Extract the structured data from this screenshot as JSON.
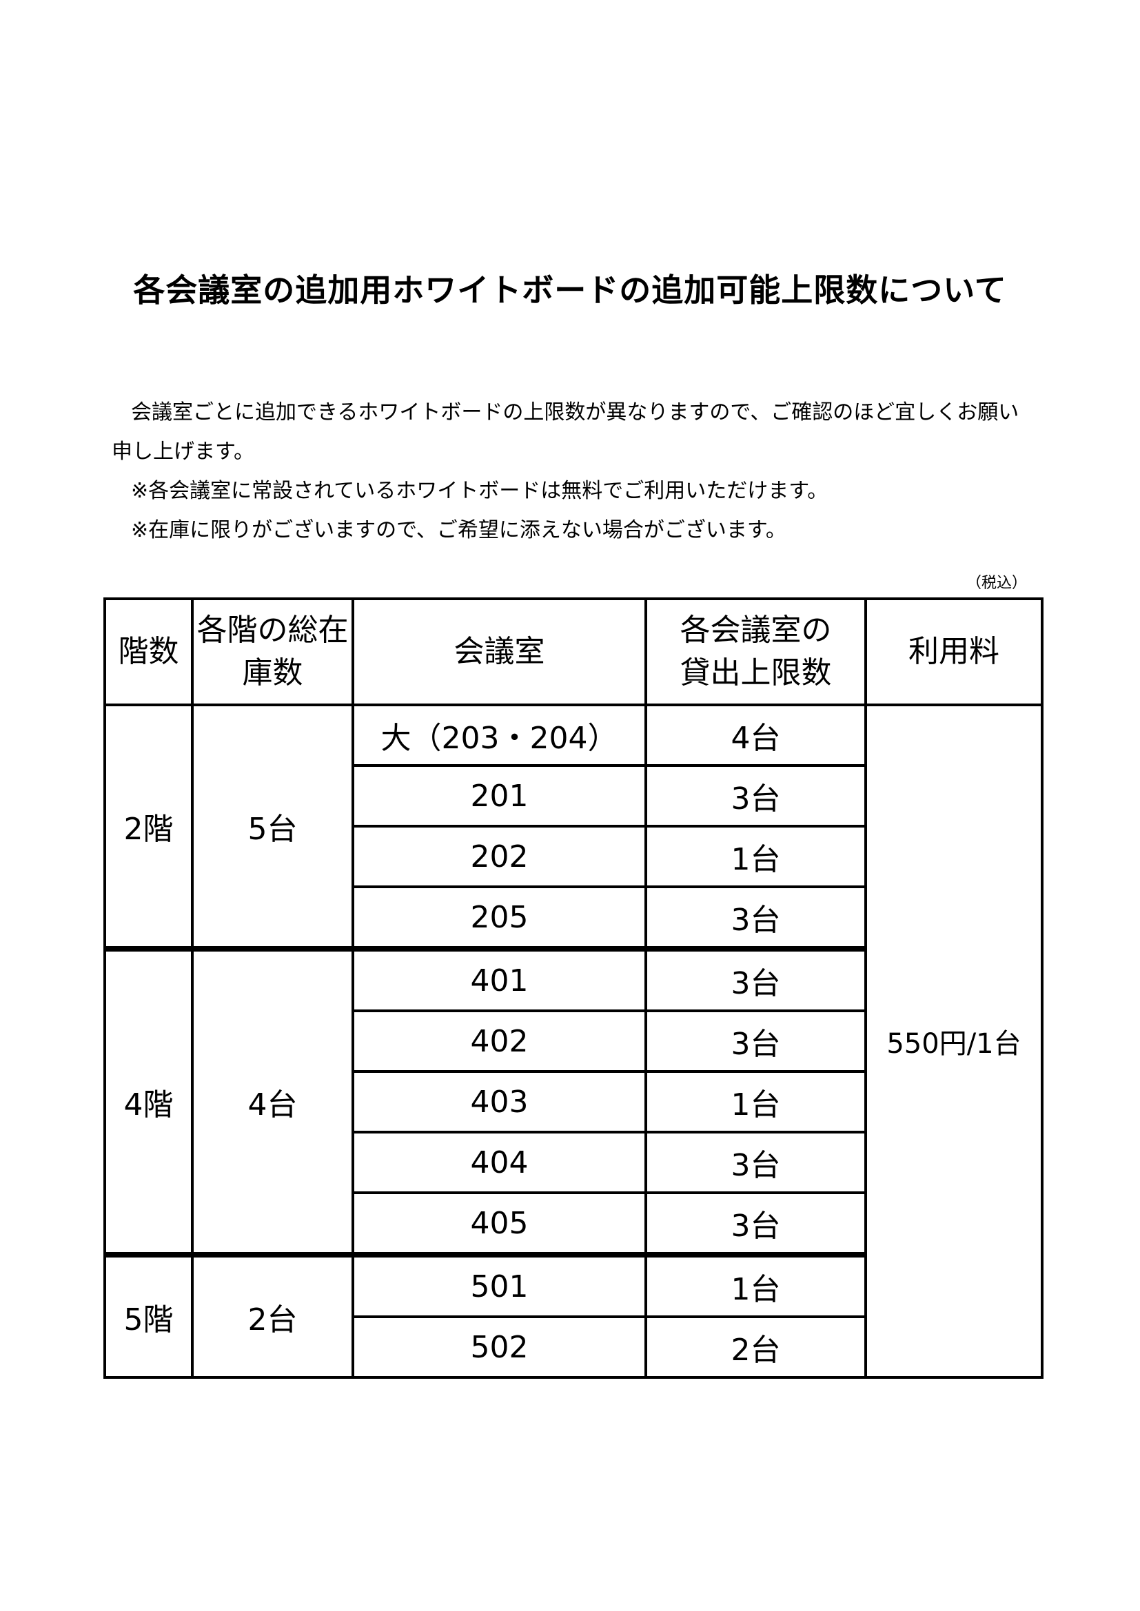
{
  "title": "各会議室の追加用ホワイトボードの追加可能上限数について",
  "intro": [
    "会議室ごとに追加できるホワイトボードの上限数が異なりますので、ご確認のほど宜しくお願い申し上げます。",
    "※各会議室に常設されているホワイトボードは無料でご利用いただけます。",
    "※在庫に限りがございますので、ご希望に添えない場合がございます。"
  ],
  "tax_note": "（税込）",
  "table": {
    "headers": [
      "階数",
      "各階の総在庫数",
      "会議室",
      "各会議室の貸出上限数",
      "利用料"
    ],
    "fee": "550円/1台",
    "floors": [
      {
        "floor": "2階",
        "total": "5台",
        "rooms": [
          {
            "room": "大（203・204）",
            "limit": "4台"
          },
          {
            "room": "201",
            "limit": "3台"
          },
          {
            "room": "202",
            "limit": "1台"
          },
          {
            "room": "205",
            "limit": "3台"
          }
        ]
      },
      {
        "floor": "4階",
        "total": "4台",
        "rooms": [
          {
            "room": "401",
            "limit": "3台"
          },
          {
            "room": "402",
            "limit": "3台"
          },
          {
            "room": "403",
            "limit": "1台"
          },
          {
            "room": "404",
            "limit": "3台"
          },
          {
            "room": "405",
            "limit": "3台"
          }
        ]
      },
      {
        "floor": "5階",
        "total": "2台",
        "rooms": [
          {
            "room": "501",
            "limit": "1台"
          },
          {
            "room": "502",
            "limit": "2台"
          }
        ]
      }
    ]
  }
}
